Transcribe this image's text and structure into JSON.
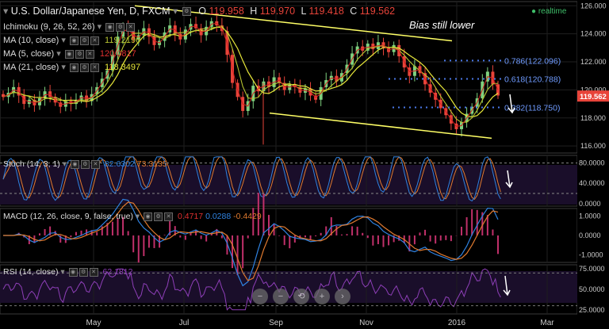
{
  "title": "U.S. Dollar/Japanese Yen, D, FXCM",
  "ohlc": {
    "o_label": "O",
    "o": "119.958",
    "h_label": "H",
    "h": "119.970",
    "l_label": "L",
    "l": "119.418",
    "c_label": "C",
    "c": "119.562"
  },
  "realtime": "realtime",
  "annotation": "Bias still lower",
  "indicators": {
    "ichimoku": {
      "label": "Ichimoku (9, 26, 52, 26)"
    },
    "ma10": {
      "label": "MA (10, close)",
      "value": "119.2196"
    },
    "ma5": {
      "label": "MA (5, close)",
      "value": "120.0817"
    },
    "ma21": {
      "label": "MA (21, close)",
      "value": "118.3497"
    },
    "stoch": {
      "label": "Stoch (14, 3, 1)",
      "v1": "82.6302",
      "v2": "73.3135"
    },
    "macd": {
      "label": "MACD (12, 26, close, 9, false, true)",
      "v1": "0.4717",
      "v2": "0.0288",
      "v3": "-0.4429"
    },
    "rsi": {
      "label": "RSI (14, close)",
      "v1": "62.1812"
    }
  },
  "fib": [
    {
      "label": "0.786(122.096)",
      "level": 122.096
    },
    {
      "label": "0.618(120.788)",
      "level": 120.788
    },
    {
      "label": "0.382(118.750)",
      "level": 118.75
    }
  ],
  "colors": {
    "up": "#7fd17f",
    "down": "#e8443a",
    "ma10": "#b8c531",
    "ma5": "#d11f1f",
    "ma21": "#e8e83a",
    "trend": "#ffff66",
    "fib": "#4a78e8",
    "stochK": "#2f82e0",
    "stochD": "#e07a2f",
    "rsi": "#8e3fb8",
    "macdLine": "#2f82e0",
    "signal": "#e07a2f",
    "hist": "#c0306a"
  },
  "chart_data": {
    "type": "candlestick",
    "x_ticks": [
      "May",
      "Jul",
      "Sep",
      "Nov",
      "2016",
      "Mar"
    ],
    "price": {
      "y_ticks": [
        "126.000",
        "124.000",
        "122.000",
        "120.000",
        "118.000",
        "116.000"
      ],
      "ylim": [
        115.5,
        126.3
      ],
      "last": "119.562",
      "closes": [
        119.5,
        119.8,
        120.2,
        119.6,
        119.0,
        119.3,
        118.9,
        119.4,
        119.9,
        119.5,
        119.1,
        118.8,
        119.2,
        119.0,
        119.3,
        119.6,
        119.2,
        119.7,
        120.2,
        120.8,
        121.4,
        122.5,
        123.8,
        124.5,
        124.2,
        123.6,
        123.9,
        124.4,
        123.8,
        123.2,
        123.5,
        124.1,
        124.6,
        124.0,
        123.6,
        124.3,
        124.7,
        124.4,
        123.9,
        124.5,
        124.9,
        124.6,
        124.2,
        122.5,
        120.5,
        119.5,
        118.5,
        119.2,
        120.3,
        119.9,
        120.6,
        120.2,
        120.9,
        120.5,
        120.0,
        120.4,
        120.2,
        119.8,
        120.1,
        119.6,
        119.3,
        120.2,
        120.7,
        121.0,
        120.6,
        121.2,
        121.8,
        122.6,
        123.1,
        122.8,
        123.3,
        122.9,
        123.4,
        123.0,
        122.7,
        123.2,
        122.4,
        121.6,
        121.0,
        121.7,
        121.2,
        120.4,
        119.8,
        119.3,
        118.7,
        118.2,
        117.6,
        117.2,
        117.7,
        118.3,
        118.8,
        119.4,
        120.6,
        121.3,
        120.4,
        119.6
      ],
      "upper_trend": [
        [
          0,
          126.0
        ],
        [
          93,
          123.4
        ]
      ],
      "lower_trend": [
        [
          55,
          118.3
        ],
        [
          203,
          116.5
        ]
      ],
      "trend_label": "Bias still lower"
    },
    "stoch": {
      "y_ticks": [
        "80.0000",
        "40.0000",
        "0.0000"
      ],
      "ylim": [
        -5,
        95
      ],
      "levels": [
        80,
        20
      ]
    },
    "macd": {
      "y_ticks": [
        "1.0000",
        "0.0000",
        "-1.0000"
      ],
      "ylim": [
        -1.4,
        1.4
      ]
    },
    "rsi": {
      "y_ticks": [
        "75.0000",
        "50.0000",
        "25.0000"
      ],
      "ylim": [
        20,
        80
      ],
      "levels": [
        70,
        30
      ]
    }
  },
  "nav_buttons": [
    "−",
    "−",
    "⟲",
    "+",
    "›"
  ]
}
